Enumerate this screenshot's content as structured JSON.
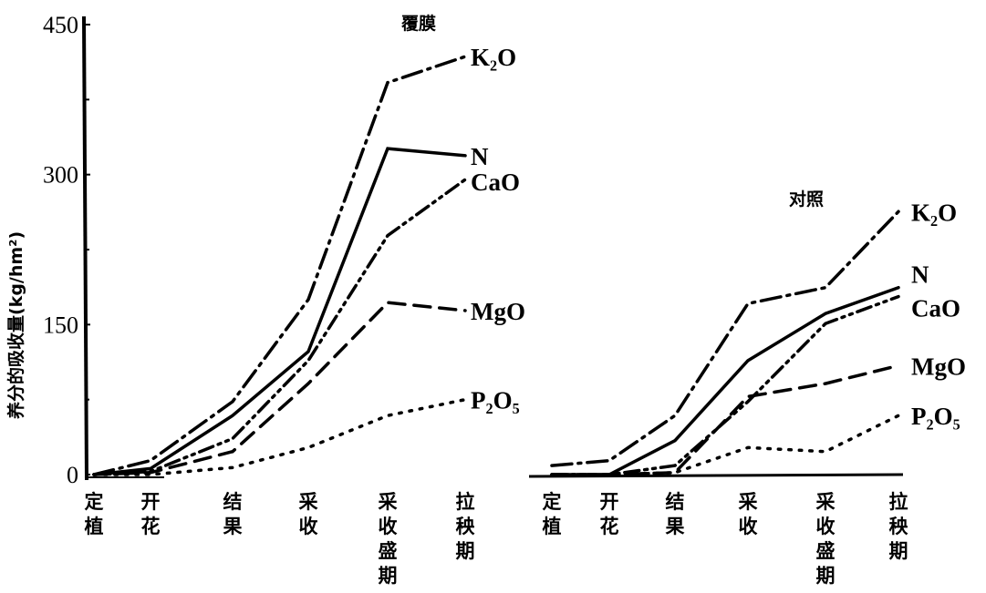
{
  "chart_data": {
    "type": "line",
    "ylabel": "养分的吸收量(kg/hm²)",
    "ylim": [
      0,
      450
    ],
    "yticks": [
      "0",
      "150",
      "300",
      "450"
    ],
    "grid": false,
    "categories": [
      "定植",
      "开花",
      "结果",
      "采收",
      "采收盛期",
      "拉秧期"
    ],
    "panels": [
      {
        "title": "覆膜",
        "series": [
          {
            "name": "K₂O",
            "style": "dashdot",
            "values": [
              0,
              14,
              73,
              175,
              392,
              418
            ]
          },
          {
            "name": "N",
            "style": "solid",
            "values": [
              0,
              6,
              59,
              123,
              326,
              319
            ]
          },
          {
            "name": "CaO",
            "style": "dashdotdot",
            "values": [
              0,
              3,
              36,
              114,
              239,
              295
            ]
          },
          {
            "name": "MgO",
            "style": "dashed",
            "values": [
              0,
              2,
              23,
              91,
              172,
              164
            ]
          },
          {
            "name": "P₂O₅",
            "style": "dotted",
            "values": [
              0,
              0,
              7,
              27,
              59,
              75
            ]
          }
        ]
      },
      {
        "title": "对照",
        "series": [
          {
            "name": "K₂O",
            "style": "dashdot",
            "values": [
              9,
              14,
              59,
              171,
              187,
              263
            ]
          },
          {
            "name": "N",
            "style": "solid",
            "values": [
              0,
              0,
              34,
              114,
              161,
              187
            ]
          },
          {
            "name": "CaO",
            "style": "dashdotdot",
            "values": [
              0,
              0,
              9,
              73,
              151,
              178
            ]
          },
          {
            "name": "MgO",
            "style": "dashed",
            "values": [
              0,
              0,
              2,
              78,
              91,
              109
            ]
          },
          {
            "name": "P₂O₅",
            "style": "dotted",
            "values": [
              0,
              0,
              2,
              27,
              23,
              59
            ]
          }
        ]
      }
    ]
  }
}
